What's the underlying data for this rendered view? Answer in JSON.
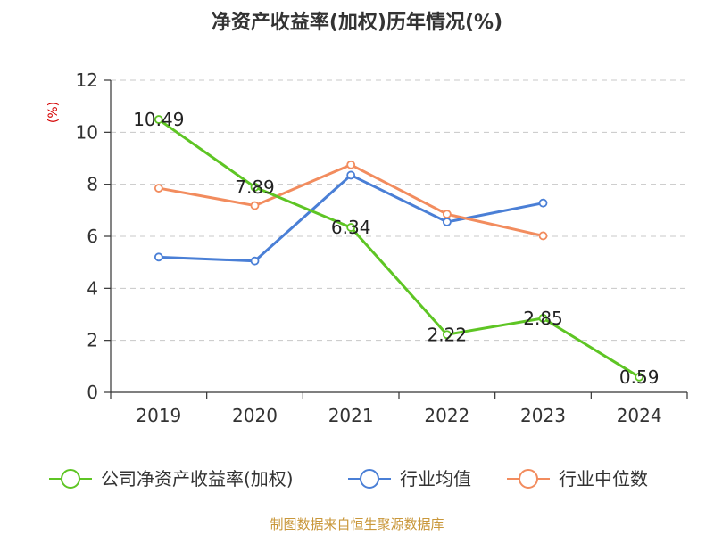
{
  "chart_data": {
    "type": "line",
    "title": "净资产收益率(加权)历年情况(%)",
    "ylabel": "(%)",
    "xlabel": "",
    "categories": [
      "2019",
      "2020",
      "2021",
      "2022",
      "2023",
      "2024"
    ],
    "ylim": [
      0,
      12
    ],
    "yticks": [
      0,
      2,
      4,
      6,
      8,
      10,
      12
    ],
    "grid": true,
    "legend_position": "bottom",
    "series": [
      {
        "name": "公司净资产收益率(加权)",
        "color": "#5ec524",
        "values": [
          10.49,
          7.89,
          6.34,
          2.22,
          2.85,
          0.59
        ],
        "data_labels": [
          "10.49",
          "7.89",
          "6.34",
          "2.22",
          "2.85",
          "0.59"
        ]
      },
      {
        "name": "行业均值",
        "color": "#4a7fd6",
        "values": [
          5.2,
          5.05,
          8.35,
          6.55,
          7.28,
          null
        ]
      },
      {
        "name": "行业中位数",
        "color": "#f28c5e",
        "values": [
          7.85,
          7.18,
          8.75,
          6.85,
          6.02,
          null
        ]
      }
    ],
    "source": "制图数据来自恒生聚源数据库"
  }
}
